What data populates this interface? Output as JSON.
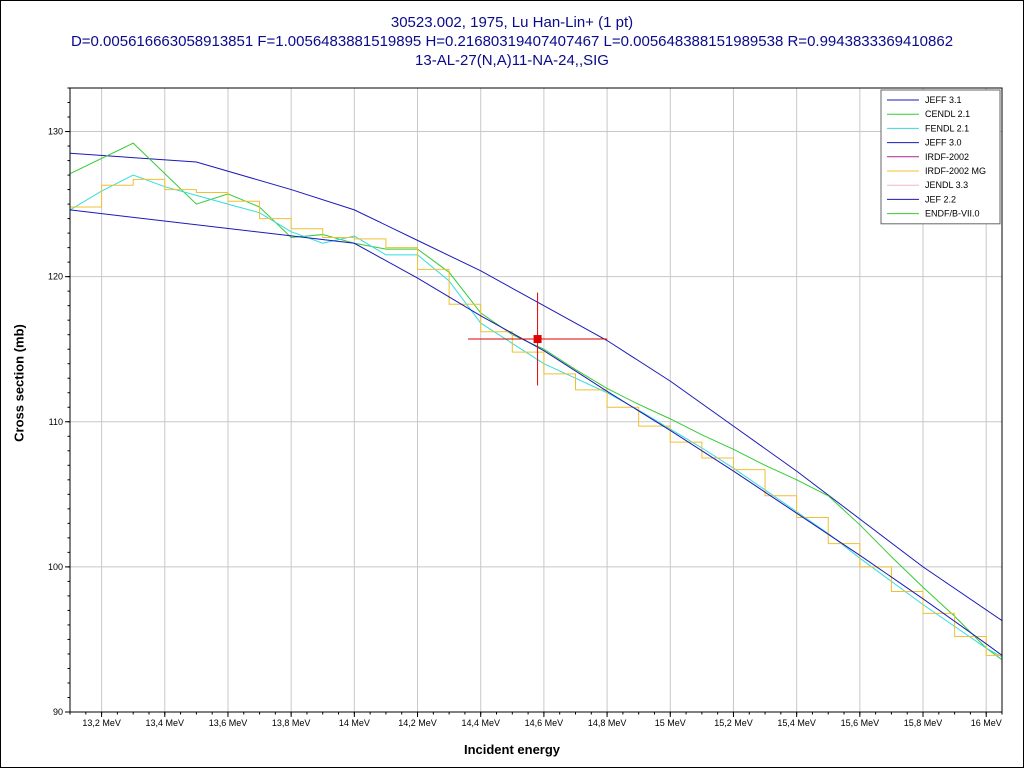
{
  "chart_data": {
    "type": "line",
    "title_lines": [
      "30523.002, 1975, Lu Han-Lin+ (1 pt)",
      "D=0.005616663058913851 F=1.0056483881519895 H=0.21680319407407467 L=0.005648388151989538 R=0.9943833369410862",
      "13-AL-27(N,A)11-NA-24,,SIG"
    ],
    "xlabel": "Incident energy",
    "ylabel": "Cross section (mb)",
    "xlim": [
      13.1,
      16.05
    ],
    "ylim": [
      90,
      133
    ],
    "x_ticks": [
      13.2,
      13.4,
      13.6,
      13.8,
      14.0,
      14.2,
      14.4,
      14.6,
      14.8,
      15.0,
      15.2,
      15.4,
      15.6,
      15.8,
      16.0
    ],
    "x_tick_labels": [
      "13,2 MeV",
      "13,4 MeV",
      "13,6 MeV",
      "13,8 MeV",
      "14 MeV",
      "14,2 MeV",
      "14,4 MeV",
      "14,6 MeV",
      "14,8 MeV",
      "15 MeV",
      "15,2 MeV",
      "15,4 MeV",
      "15,6 MeV",
      "15,8 MeV",
      "16 MeV"
    ],
    "y_ticks": [
      90,
      100,
      110,
      120,
      130
    ],
    "y_tick_labels": [
      "90",
      "100",
      "110",
      "120",
      "130"
    ],
    "grid": true,
    "legend_position": "top-right",
    "series": [
      {
        "name": "JEFF 3.1",
        "color": "#1a1ab8",
        "step": false,
        "x": [
          13.1,
          13.5,
          13.8,
          14.0,
          14.2,
          14.4,
          14.6,
          14.8,
          15.0,
          15.2,
          15.4,
          15.6,
          15.8,
          16.05
        ],
        "y": [
          128.5,
          127.9,
          126.0,
          124.6,
          122.5,
          120.4,
          118.0,
          115.6,
          112.8,
          109.7,
          106.6,
          103.3,
          100.0,
          96.3
        ]
      },
      {
        "name": "CENDL 2.1",
        "color": "#33cc33",
        "step": false,
        "x": [
          13.1,
          13.3,
          13.5,
          13.6,
          13.7,
          13.8,
          13.9,
          14.0,
          14.1,
          14.2,
          14.3,
          14.4,
          14.5,
          14.6,
          14.7,
          14.8,
          14.9,
          15.0,
          15.1,
          15.2,
          15.3,
          15.4,
          15.5,
          15.6,
          15.7,
          15.8,
          15.9,
          16.0,
          16.05
        ],
        "y": [
          127.1,
          129.2,
          125.0,
          125.7,
          124.8,
          122.7,
          122.9,
          122.3,
          121.9,
          121.9,
          120.3,
          117.5,
          116.0,
          115.0,
          113.6,
          112.3,
          111.2,
          110.2,
          109.1,
          108.1,
          107.0,
          106.0,
          104.9,
          102.9,
          100.7,
          98.6,
          96.6,
          94.4,
          93.6
        ]
      },
      {
        "name": "FENDL 2.1",
        "color": "#33dddd",
        "step": false,
        "x": [
          13.1,
          13.2,
          13.3,
          13.4,
          13.5,
          13.6,
          13.7,
          13.8,
          13.9,
          14.0,
          14.1,
          14.2,
          14.3,
          14.4,
          14.5,
          14.6,
          14.7,
          14.8,
          14.9,
          15.0,
          15.1,
          15.2,
          15.3,
          15.4,
          15.5,
          15.6,
          15.7,
          15.8,
          15.9,
          16.0,
          16.05
        ],
        "y": [
          124.6,
          125.9,
          127.0,
          126.2,
          125.6,
          125.0,
          124.4,
          123.1,
          122.3,
          122.8,
          121.5,
          121.5,
          119.7,
          116.8,
          115.4,
          114.0,
          113.0,
          112.0,
          110.8,
          109.5,
          108.2,
          106.8,
          105.3,
          103.8,
          102.3,
          100.6,
          99.0,
          97.4,
          95.9,
          94.4,
          93.8
        ]
      },
      {
        "name": "JEFF 3.0",
        "color": "#1a1ab8",
        "step": false,
        "x": [],
        "y": []
      },
      {
        "name": "IRDF-2002",
        "color": "#aa2299",
        "step": false,
        "x": [],
        "y": []
      },
      {
        "name": "IRDF-2002 MG",
        "color": "#f0c030",
        "step": true,
        "x": [
          13.1,
          13.2,
          13.3,
          13.4,
          13.5,
          13.6,
          13.7,
          13.8,
          13.9,
          14.0,
          14.1,
          14.2,
          14.3,
          14.4,
          14.5,
          14.6,
          14.7,
          14.8,
          14.9,
          15.0,
          15.1,
          15.2,
          15.3,
          15.4,
          15.5,
          15.6,
          15.7,
          15.8,
          15.9,
          16.0,
          16.05
        ],
        "y": [
          124.8,
          126.3,
          126.7,
          126.0,
          125.8,
          125.2,
          124.0,
          123.3,
          122.7,
          122.6,
          122.0,
          120.5,
          118.1,
          116.2,
          114.8,
          113.3,
          112.2,
          111.0,
          109.7,
          108.6,
          107.5,
          106.7,
          104.9,
          103.4,
          101.6,
          100.0,
          98.3,
          96.8,
          95.2,
          93.9,
          93.9
        ]
      },
      {
        "name": "JENDL 3.3",
        "color": "#f0b8c0",
        "step": false,
        "x": [],
        "y": []
      },
      {
        "name": "JEF 2.2",
        "color": "#1a1ab8",
        "step": false,
        "x": [
          13.1,
          14.0,
          14.2,
          14.4,
          14.6,
          14.8,
          15.0,
          15.2,
          15.4,
          15.6,
          15.8,
          16.0,
          16.05
        ],
        "y": [
          124.6,
          122.3,
          119.9,
          117.3,
          114.9,
          112.1,
          109.4,
          106.6,
          103.7,
          100.8,
          97.8,
          94.7,
          93.9
        ]
      },
      {
        "name": "ENDF/B-VII.0",
        "color": "#33cc33",
        "step": false,
        "x": [],
        "y": []
      }
    ],
    "experimental_points": [
      {
        "x": 14.58,
        "y": 115.7,
        "x_err": 0.22,
        "y_err": 3.2,
        "color": "#e00000"
      }
    ]
  }
}
